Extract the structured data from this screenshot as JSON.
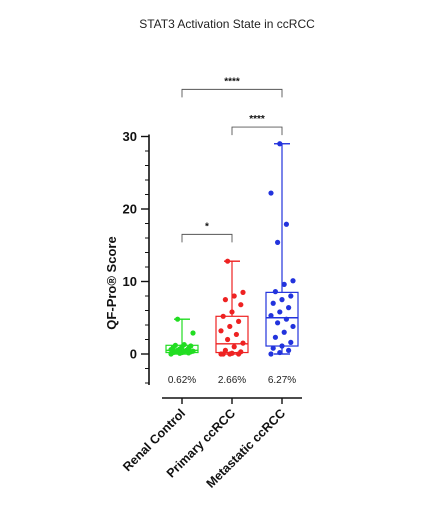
{
  "chart_data": {
    "type": "box",
    "title": "STAT3 Activation State in ccRCC",
    "ylabel": "QF-Pro® Score",
    "ylim": [
      -5,
      30
    ],
    "yticks": [
      "0",
      "10",
      "20",
      "30"
    ],
    "categories": [
      "Renal Control",
      "Primary ccRCC",
      "Metastatic ccRCC"
    ],
    "colors": [
      "#22dd22",
      "#ee2222",
      "#2233dd"
    ],
    "boxes": [
      {
        "min": 0,
        "q1": 0.2,
        "median": 0.5,
        "q3": 1.2,
        "max": 4.8
      },
      {
        "min": 0,
        "q1": 0.2,
        "median": 1.4,
        "q3": 5.2,
        "max": 12.8
      },
      {
        "min": 0,
        "q1": 1.1,
        "median": 5.0,
        "q3": 8.5,
        "max": 29.0
      }
    ],
    "points": [
      [
        0,
        0.1,
        0.15,
        0.2,
        0.2,
        0.3,
        0.3,
        0.4,
        0.4,
        0.5,
        0.5,
        0.6,
        0.7,
        0.8,
        0.9,
        1.0,
        1.1,
        1.2,
        1.3,
        2.9,
        4.8
      ],
      [
        0,
        0,
        0,
        0,
        0.1,
        0.3,
        0.5,
        1.0,
        1.5,
        2.0,
        2.7,
        3.2,
        3.8,
        4.5,
        5.2,
        5.8,
        6.8,
        7.5,
        8.0,
        8.5,
        12.8
      ],
      [
        0,
        0.2,
        0.5,
        0.8,
        1.1,
        1.6,
        2.3,
        3.0,
        3.8,
        4.3,
        4.8,
        5.3,
        5.8,
        6.4,
        7.0,
        7.5,
        8.0,
        8.6,
        9.6,
        10.1,
        15.4,
        17.9,
        22.2,
        29.0
      ]
    ],
    "percent_labels": [
      "0.62%",
      "2.66%",
      "6.27%"
    ],
    "significance": [
      {
        "from": 0,
        "to": 1,
        "label": "*",
        "y": 16.5
      },
      {
        "from": 1,
        "to": 2,
        "label": "****",
        "y": 31.3
      },
      {
        "from": 0,
        "to": 2,
        "label": "****",
        "y": 36.5
      }
    ]
  }
}
